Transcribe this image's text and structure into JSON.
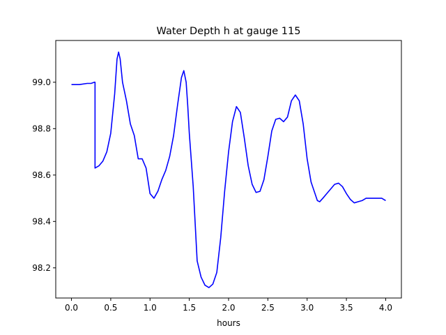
{
  "chart_data": {
    "type": "line",
    "title": "Water Depth h at gauge 115",
    "xlabel": "hours",
    "ylabel": "",
    "xlim": [
      -0.2,
      4.2
    ],
    "ylim": [
      98.07,
      99.18
    ],
    "xticks": [
      0.0,
      0.5,
      1.0,
      1.5,
      2.0,
      2.5,
      3.0,
      3.5,
      4.0
    ],
    "xtick_labels": [
      "0.0",
      "0.5",
      "1.0",
      "1.5",
      "2.0",
      "2.5",
      "3.0",
      "3.5",
      "4.0"
    ],
    "yticks": [
      98.2,
      98.4,
      98.6,
      98.8,
      99.0
    ],
    "ytick_labels": [
      "98.2",
      "98.4",
      "98.6",
      "98.8",
      "99.0"
    ],
    "grid": false,
    "legend": false,
    "series": [
      {
        "color": "#0000ff",
        "x": [
          0.0,
          0.1,
          0.2,
          0.25,
          0.29,
          0.3,
          0.3,
          0.35,
          0.4,
          0.45,
          0.5,
          0.55,
          0.58,
          0.6,
          0.62,
          0.65,
          0.7,
          0.75,
          0.8,
          0.85,
          0.9,
          0.95,
          1.0,
          1.05,
          1.1,
          1.15,
          1.2,
          1.25,
          1.3,
          1.35,
          1.4,
          1.43,
          1.46,
          1.48,
          1.5,
          1.55,
          1.6,
          1.65,
          1.7,
          1.75,
          1.8,
          1.85,
          1.9,
          1.95,
          2.0,
          2.05,
          2.1,
          2.15,
          2.2,
          2.25,
          2.3,
          2.35,
          2.4,
          2.45,
          2.5,
          2.55,
          2.6,
          2.65,
          2.7,
          2.75,
          2.8,
          2.85,
          2.9,
          2.95,
          3.0,
          3.05,
          3.1,
          3.13,
          3.16,
          3.2,
          3.25,
          3.3,
          3.35,
          3.4,
          3.45,
          3.5,
          3.55,
          3.6,
          3.65,
          3.7,
          3.75,
          3.8,
          3.85,
          3.9,
          3.95,
          4.0
        ],
        "y": [
          98.99,
          98.99,
          98.995,
          98.995,
          99.0,
          99.0,
          98.63,
          98.64,
          98.66,
          98.7,
          98.78,
          98.95,
          99.1,
          99.13,
          99.1,
          99.0,
          98.92,
          98.82,
          98.77,
          98.67,
          98.67,
          98.63,
          98.52,
          98.5,
          98.53,
          98.58,
          98.62,
          98.68,
          98.77,
          98.9,
          99.02,
          99.05,
          99.0,
          98.9,
          98.78,
          98.55,
          98.23,
          98.16,
          98.125,
          98.115,
          98.13,
          98.18,
          98.33,
          98.53,
          98.7,
          98.83,
          98.895,
          98.87,
          98.76,
          98.64,
          98.56,
          98.525,
          98.53,
          98.58,
          98.68,
          98.79,
          98.84,
          98.845,
          98.83,
          98.85,
          98.92,
          98.945,
          98.92,
          98.82,
          98.67,
          98.57,
          98.52,
          98.49,
          98.485,
          98.5,
          98.52,
          98.54,
          98.56,
          98.565,
          98.55,
          98.52,
          98.495,
          98.48,
          98.485,
          98.49,
          98.5,
          98.5,
          98.5,
          98.5,
          98.5,
          98.49
        ]
      }
    ]
  }
}
